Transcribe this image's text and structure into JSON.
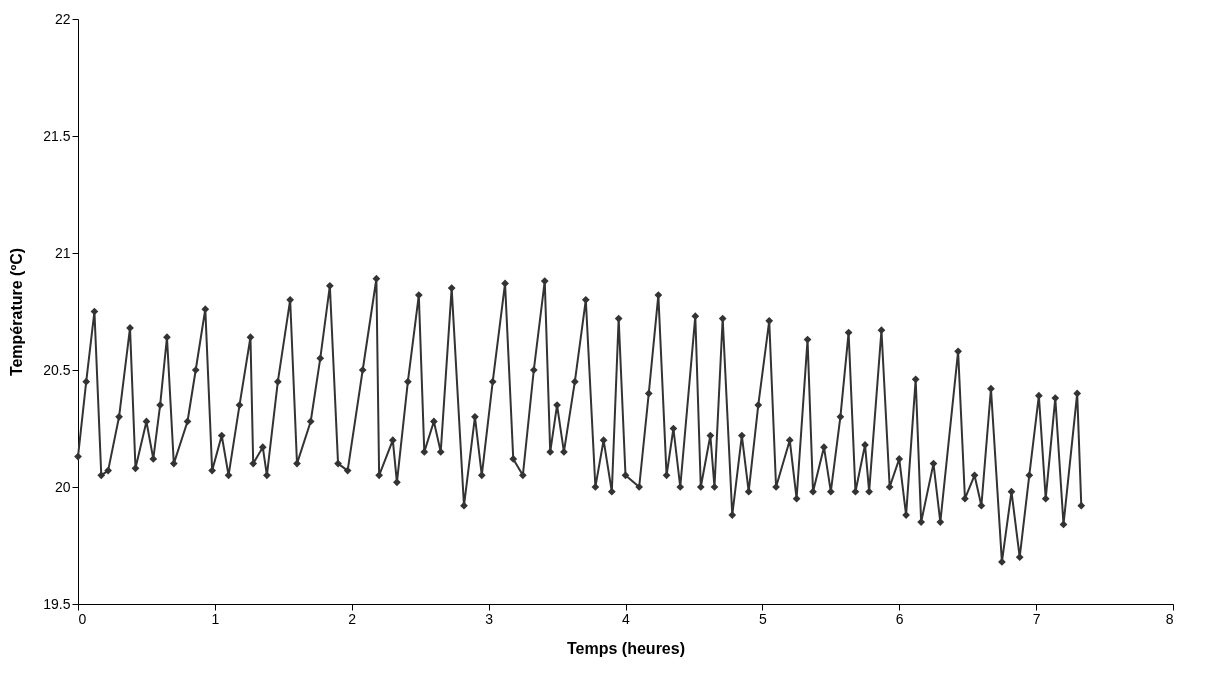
{
  "chart_data": {
    "type": "line",
    "xlabel": "Temps (heures)",
    "ylabel": "Température (ºC)",
    "xlim": [
      0,
      8
    ],
    "xticks": [
      0,
      1,
      2,
      3,
      4,
      5,
      6,
      7,
      8
    ],
    "ylim": [
      19.5,
      22
    ],
    "yticks": [
      19.5,
      20,
      20.5,
      21,
      21.5,
      22
    ],
    "grid": false,
    "legend": false,
    "marker": "diamond",
    "line_style": "solid",
    "series": [
      {
        "color": "#333333",
        "x": [
          0,
          0.06,
          0.12,
          0.17,
          0.22,
          0.3,
          0.38,
          0.42,
          0.5,
          0.55,
          0.6,
          0.65,
          0.7,
          0.8,
          0.86,
          0.93,
          0.98,
          1.05,
          1.1,
          1.18,
          1.26,
          1.28,
          1.35,
          1.38,
          1.46,
          1.55,
          1.6,
          1.7,
          1.77,
          1.84,
          1.9,
          1.97,
          2.08,
          2.18,
          2.2,
          2.3,
          2.33,
          2.41,
          2.49,
          2.53,
          2.6,
          2.65,
          2.73,
          2.82,
          2.9,
          2.95,
          3.03,
          3.12,
          3.18,
          3.25,
          3.33,
          3.41,
          3.45,
          3.5,
          3.55,
          3.63,
          3.71,
          3.78,
          3.84,
          3.9,
          3.95,
          4.0,
          4.1,
          4.17,
          4.24,
          4.3,
          4.35,
          4.4,
          4.51,
          4.55,
          4.62,
          4.65,
          4.71,
          4.78,
          4.85,
          4.9,
          4.97,
          5.05,
          5.1,
          5.2,
          5.25,
          5.33,
          5.37,
          5.45,
          5.5,
          5.57,
          5.63,
          5.68,
          5.75,
          5.78,
          5.87,
          5.93,
          6.0,
          6.05,
          6.12,
          6.16,
          6.25,
          6.3,
          6.43,
          6.48,
          6.55,
          6.6,
          6.67,
          6.75,
          6.82,
          6.88,
          6.95,
          7.02,
          7.07,
          7.14,
          7.2,
          7.3,
          7.33
        ],
        "values": [
          20.13,
          20.45,
          20.75,
          20.05,
          20.07,
          20.3,
          20.68,
          20.08,
          20.28,
          20.12,
          20.35,
          20.64,
          20.1,
          20.28,
          20.5,
          20.76,
          20.07,
          20.22,
          20.05,
          20.35,
          20.64,
          20.1,
          20.17,
          20.05,
          20.45,
          20.8,
          20.1,
          20.28,
          20.55,
          20.86,
          20.1,
          20.07,
          20.5,
          20.89,
          20.05,
          20.2,
          20.02,
          20.45,
          20.82,
          20.15,
          20.28,
          20.15,
          20.85,
          19.92,
          20.3,
          20.05,
          20.45,
          20.87,
          20.12,
          20.05,
          20.5,
          20.88,
          20.15,
          20.35,
          20.15,
          20.45,
          20.8,
          20.0,
          20.2,
          19.98,
          20.72,
          20.05,
          20.0,
          20.4,
          20.82,
          20.05,
          20.25,
          20.0,
          20.73,
          20.0,
          20.22,
          20.0,
          20.72,
          19.88,
          20.22,
          19.98,
          20.35,
          20.71,
          20.0,
          20.2,
          19.95,
          20.63,
          19.98,
          20.17,
          19.98,
          20.3,
          20.66,
          19.98,
          20.18,
          19.98,
          20.67,
          20.0,
          20.12,
          19.88,
          20.46,
          19.85,
          20.1,
          19.85,
          20.58,
          19.95,
          20.05,
          19.92,
          20.42,
          19.68,
          19.98,
          19.7,
          20.05,
          20.39,
          19.95,
          20.38,
          19.84,
          20.4,
          19.92
        ]
      }
    ]
  }
}
